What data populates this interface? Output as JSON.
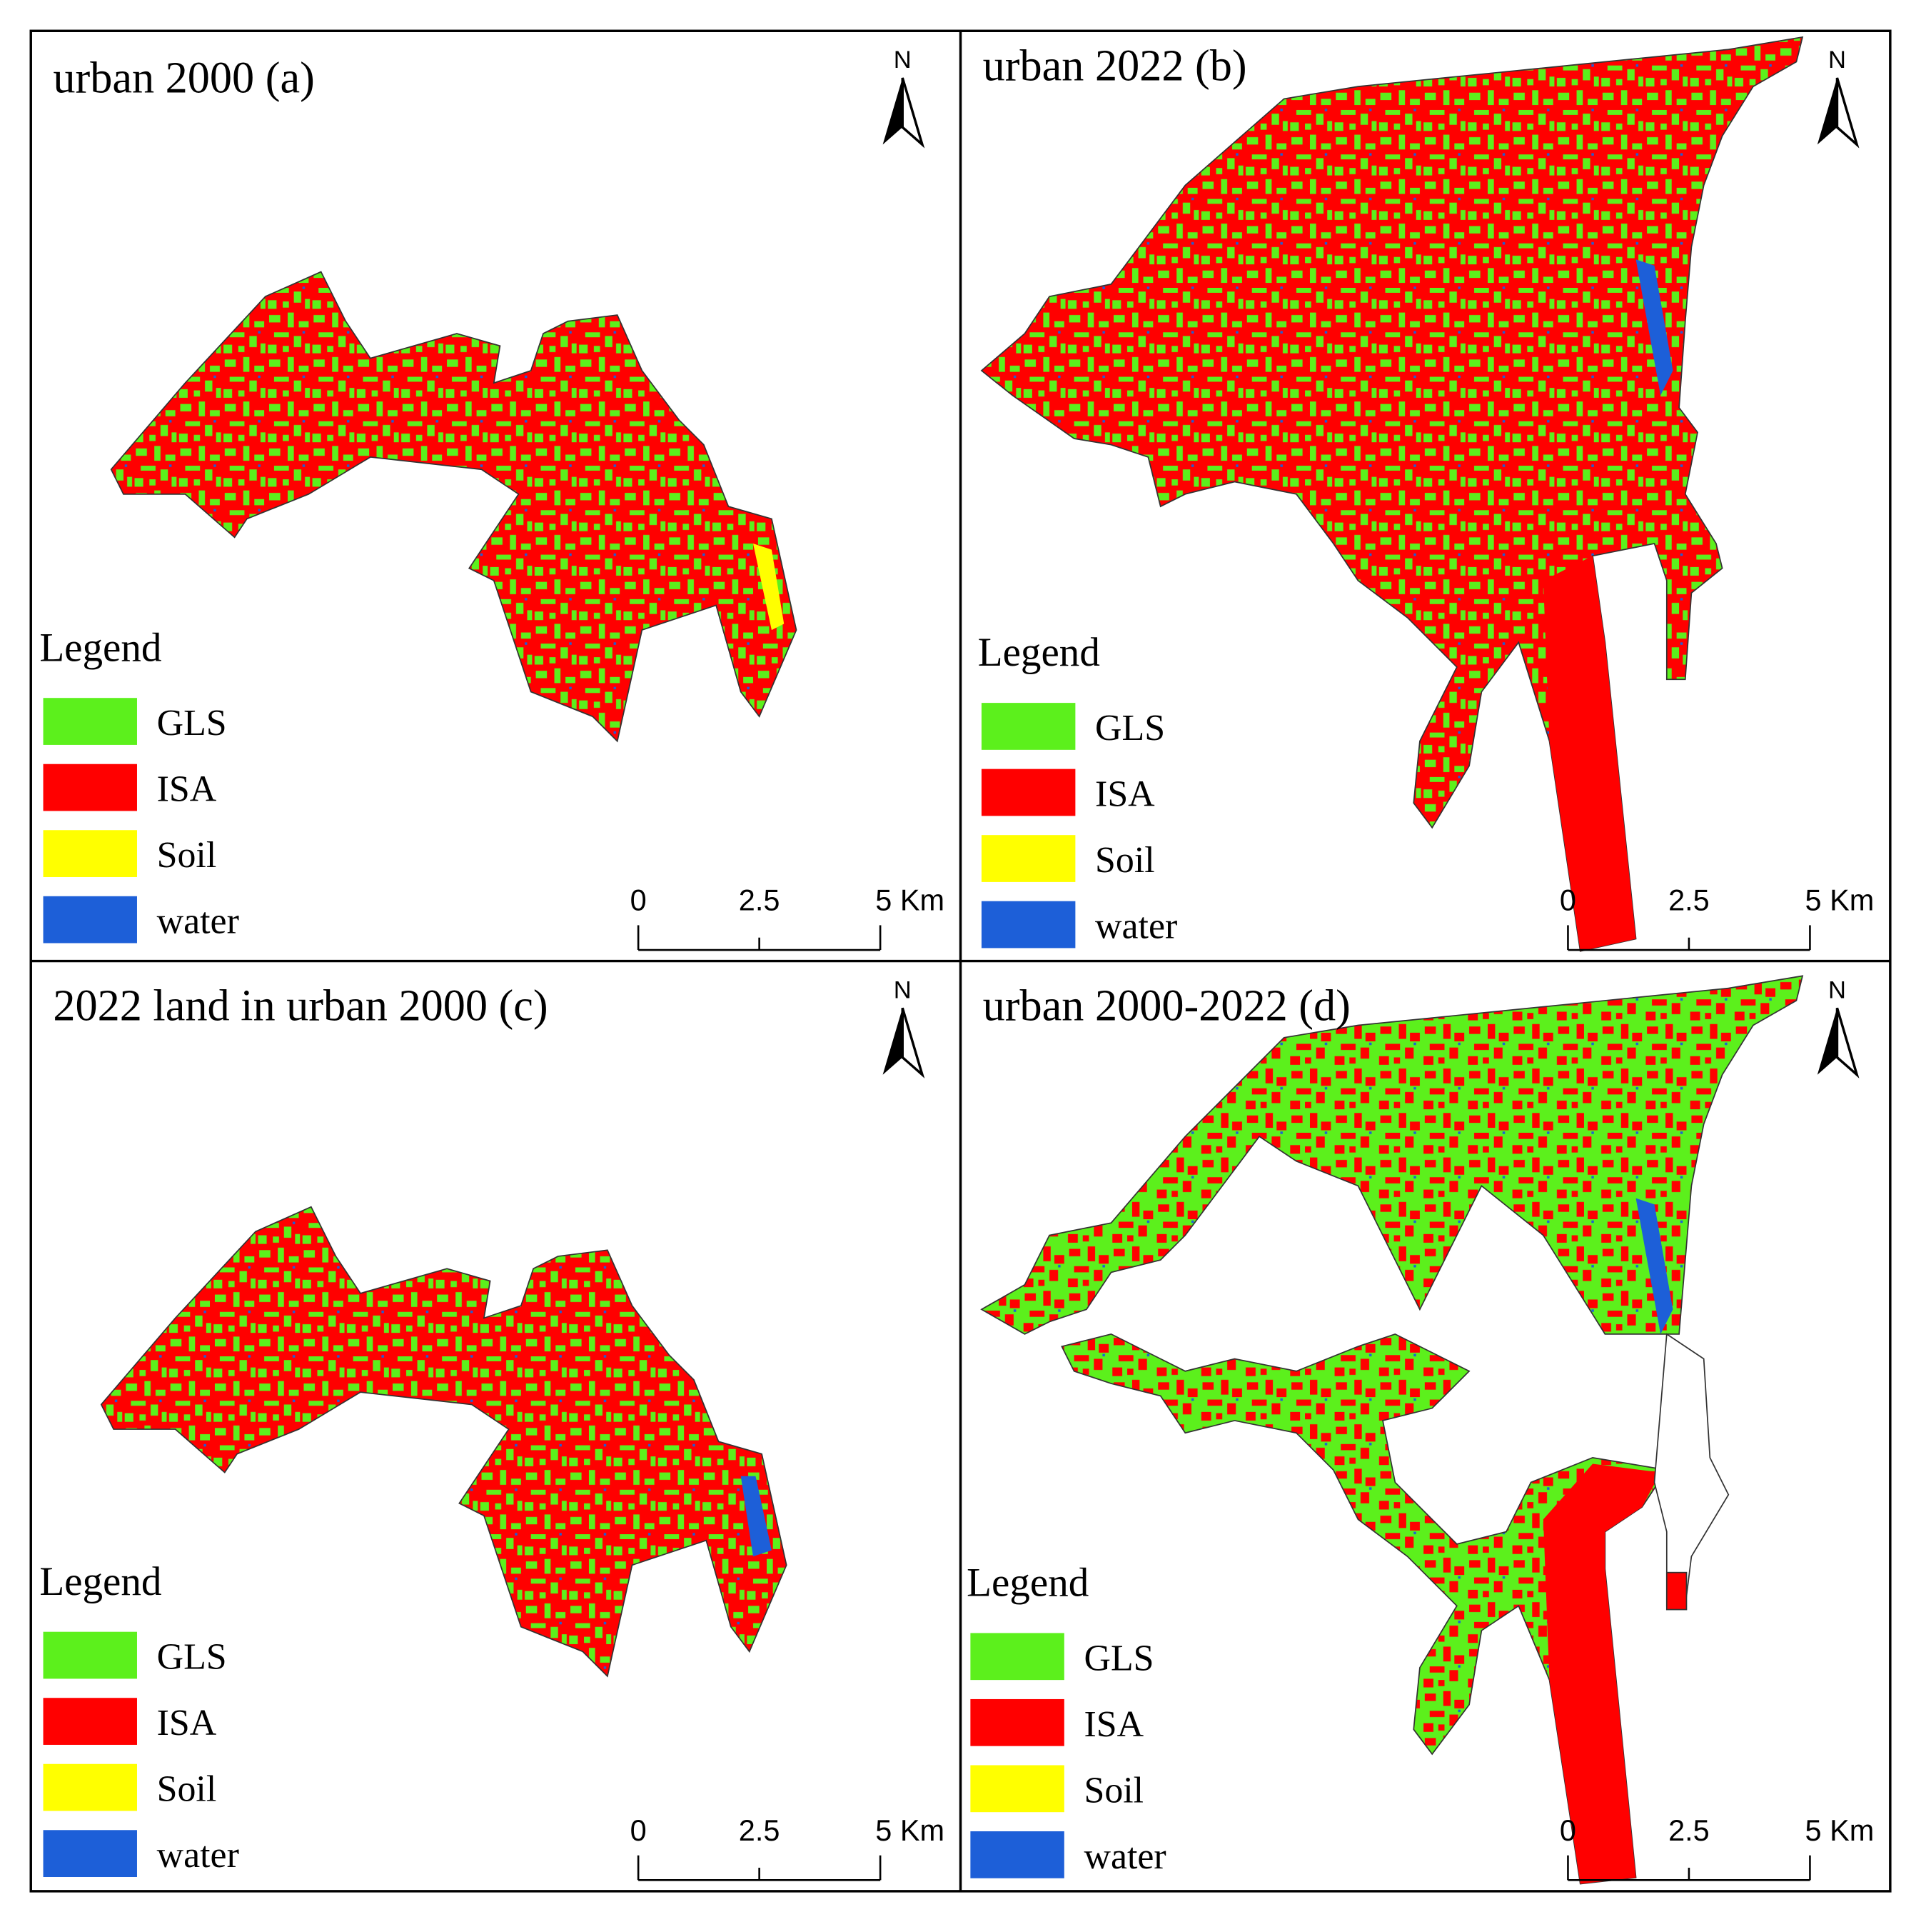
{
  "panels": [
    {
      "title": "urban 2000 (a)",
      "north": "N",
      "legend": {
        "title": "Legend",
        "items": [
          {
            "label": "GLS",
            "color": "#5cf01c"
          },
          {
            "label": "ISA",
            "color": "#ff0000"
          },
          {
            "label": "Soil",
            "color": "#ffff00"
          },
          {
            "label": "water",
            "color": "#1d5fd8"
          }
        ]
      },
      "scale_bar": {
        "labels": [
          "0",
          "2.5",
          "5 Km"
        ]
      }
    },
    {
      "title": "urban 2022 (b)",
      "north": "N",
      "legend": {
        "title": "Legend",
        "items": [
          {
            "label": "GLS",
            "color": "#5cf01c"
          },
          {
            "label": "ISA",
            "color": "#ff0000"
          },
          {
            "label": "Soil",
            "color": "#ffff00"
          },
          {
            "label": "water",
            "color": "#1d5fd8"
          }
        ]
      },
      "scale_bar": {
        "labels": [
          "0",
          "2.5",
          "5 Km"
        ]
      }
    },
    {
      "title": "2022 land in urban 2000  (c)",
      "north": "N",
      "legend": {
        "title": "Legend",
        "items": [
          {
            "label": "GLS",
            "color": "#5cf01c"
          },
          {
            "label": "ISA",
            "color": "#ff0000"
          },
          {
            "label": "Soil",
            "color": "#ffff00"
          },
          {
            "label": "water",
            "color": "#1d5fd8"
          }
        ]
      },
      "scale_bar": {
        "labels": [
          "0",
          "2.5",
          "5 Km"
        ]
      }
    },
    {
      "title": "urban 2000-2022  (d)",
      "north": "N",
      "legend": {
        "title": "Legend",
        "items": [
          {
            "label": "GLS",
            "color": "#5cf01c"
          },
          {
            "label": "ISA",
            "color": "#ff0000"
          },
          {
            "label": "Soil",
            "color": "#ffff00"
          },
          {
            "label": "water",
            "color": "#1d5fd8"
          }
        ]
      },
      "scale_bar": {
        "labels": [
          "0",
          "2.5",
          "5 Km"
        ]
      }
    }
  ]
}
